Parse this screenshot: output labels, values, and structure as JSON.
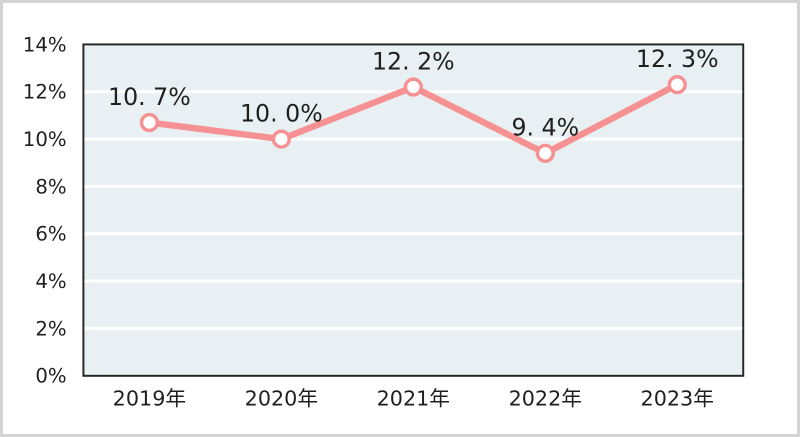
{
  "chart_data": {
    "type": "line",
    "title": "",
    "xlabel": "",
    "ylabel": "",
    "categories": [
      "2019年",
      "2020年",
      "2021年",
      "2022年",
      "2023年"
    ],
    "values": [
      10.7,
      10.0,
      12.2,
      9.4,
      12.3
    ],
    "point_labels": [
      "10. 7%",
      "10. 0%",
      "12. 2%",
      "9. 4%",
      "12. 3%"
    ],
    "ylim": [
      0,
      14
    ],
    "y_tick_step": 2,
    "y_tick_labels": [
      "0%",
      "2%",
      "4%",
      "6%",
      "8%",
      "10%",
      "12%",
      "14%"
    ],
    "grid": true,
    "legend_position": "none",
    "colors": {
      "line": "#f59192",
      "marker_fill": "#ffffff",
      "marker_stroke": "#f59192",
      "plot_background": "#e9f0f3",
      "gridline": "#ffffff",
      "plot_border": "#262626",
      "axis_text": "#1f1f1f",
      "outer_border": "#d4d4d4",
      "page_background": "#ffffff"
    }
  }
}
